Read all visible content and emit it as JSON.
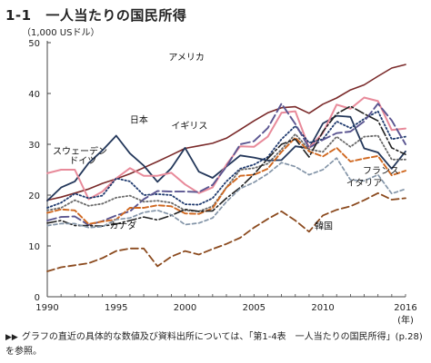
{
  "header": {
    "number": "1-1",
    "title": "一人当たりの国民所得",
    "unit": "（1,000 USドル）"
  },
  "note": {
    "bullet": "▶▶",
    "text": "グラフの直近の具体的な数値及び資料出所については、「第1-4表　一人当たりの国民所得」(p.28)を参照。"
  },
  "chart_data": {
    "type": "line",
    "title": "一人当たりの国民所得",
    "ylabel": "（1,000 USドル）",
    "xlabel_unit": "(年)",
    "xlim": [
      1990,
      2016
    ],
    "ylim": [
      0,
      50
    ],
    "xticks": [
      1990,
      1995,
      2000,
      2005,
      2010,
      2016
    ],
    "yticks": [
      0,
      10,
      20,
      30,
      40,
      50
    ],
    "grid": false,
    "x": [
      1990,
      1991,
      1992,
      1993,
      1994,
      1995,
      1996,
      1997,
      1998,
      1999,
      2000,
      2001,
      2002,
      2003,
      2004,
      2005,
      2006,
      2007,
      2008,
      2009,
      2010,
      2011,
      2012,
      2013,
      2014,
      2015,
      2016
    ],
    "series": [
      {
        "name": "アメリカ",
        "color": "#7a2a2a",
        "dash": "",
        "width": 1.6,
        "label_x": 1998.8,
        "label_y": 46.5,
        "values": [
          19.0,
          19.6,
          20.4,
          21.2,
          22.3,
          23.2,
          24.2,
          25.4,
          26.6,
          27.9,
          29.2,
          29.7,
          30.2,
          31.2,
          32.9,
          34.6,
          36.2,
          37.2,
          37.4,
          36.1,
          37.9,
          39.1,
          40.7,
          41.7,
          43.4,
          45.0,
          45.7
        ]
      },
      {
        "name": "日本",
        "color": "#23375a",
        "dash": "",
        "width": 1.8,
        "label_x": 1996.0,
        "label_y": 34.2,
        "values": [
          18.9,
          21.5,
          22.7,
          26.3,
          28.8,
          31.7,
          28.2,
          25.8,
          22.6,
          25.3,
          29.3,
          24.6,
          23.4,
          25.6,
          27.8,
          27.4,
          26.8,
          26.9,
          29.6,
          29.2,
          34.1,
          35.6,
          35.4,
          29.2,
          28.4,
          25.2,
          28.6
        ]
      },
      {
        "name": "スウェーデン",
        "color": "#e88a9a",
        "dash": "",
        "width": 2.0,
        "label_x": 1990.4,
        "label_y": 28.0,
        "values": [
          24.3,
          25.0,
          25.0,
          19.2,
          20.7,
          23.3,
          25.3,
          23.8,
          23.8,
          24.4,
          22.1,
          20.4,
          21.5,
          26.0,
          29.6,
          29.5,
          31.5,
          36.2,
          36.5,
          29.3,
          32.2,
          37.8,
          37.0,
          39.2,
          38.5,
          32.8,
          33.1
        ]
      },
      {
        "name": "ドイツ",
        "color": "#1f3a6e",
        "dash": "1.5,2.5",
        "width": 1.8,
        "label_x": 1991.6,
        "label_y": 26.2,
        "values": [
          17.5,
          18.5,
          20.3,
          19.4,
          19.9,
          23.3,
          22.7,
          20.0,
          20.2,
          20.0,
          18.2,
          18.1,
          19.4,
          22.7,
          25.2,
          26.0,
          27.5,
          31.0,
          33.6,
          30.3,
          31.0,
          34.5,
          33.2,
          35.0,
          36.5,
          31.0,
          31.5
        ]
      },
      {
        "name": "イギリス",
        "color": "#5a5590",
        "dash": "10,4",
        "width": 1.9,
        "label_x": 1999.0,
        "label_y": 33.0,
        "values": [
          15.0,
          15.7,
          15.8,
          14.1,
          14.9,
          16.0,
          16.8,
          19.2,
          20.8,
          20.7,
          20.7,
          20.6,
          22.0,
          25.6,
          30.0,
          30.6,
          33.2,
          38.0,
          34.0,
          29.3,
          30.9,
          32.2,
          32.5,
          34.5,
          38.0,
          34.7,
          30.0
        ]
      },
      {
        "name": "フランス",
        "color": "#6a6a6a",
        "dash": "1.5,2.5",
        "width": 1.8,
        "label_x": 2012.9,
        "label_y": 24.2,
        "values": [
          17.0,
          17.5,
          19.0,
          17.9,
          18.3,
          19.5,
          19.9,
          18.7,
          18.9,
          18.5,
          17.0,
          16.8,
          17.8,
          21.5,
          25.0,
          25.3,
          26.2,
          29.0,
          32.0,
          29.0,
          28.5,
          31.5,
          29.5,
          31.5,
          31.7,
          27.0,
          27.0
        ]
      },
      {
        "name": "イタリア",
        "color": "#d06820",
        "dash": "6,3",
        "width": 1.9,
        "label_x": 2011.7,
        "label_y": 21.8,
        "values": [
          16.5,
          17.2,
          17.0,
          14.3,
          14.8,
          15.2,
          17.5,
          17.5,
          18.0,
          17.8,
          16.4,
          16.3,
          17.4,
          21.5,
          23.8,
          24.0,
          25.2,
          28.5,
          31.3,
          28.6,
          27.6,
          29.3,
          26.6,
          27.2,
          27.7,
          23.9,
          24.8
        ]
      },
      {
        "name": "カナダ",
        "color": "#222222",
        "dash": "10,3,2,3",
        "width": 1.6,
        "label_x": 1994.5,
        "label_y": 13.4,
        "values": [
          14.5,
          15.0,
          14.0,
          14.0,
          13.9,
          14.3,
          15.0,
          15.7,
          15.1,
          16.0,
          17.2,
          16.8,
          16.9,
          19.4,
          21.5,
          24.1,
          27.2,
          30.0,
          31.0,
          27.5,
          32.5,
          36.0,
          37.5,
          36.0,
          34.6,
          29.3,
          28.0
        ]
      },
      {
        "name": "",
        "color": "#8495a8",
        "dash": "4,3",
        "width": 1.7,
        "label_x": 0,
        "label_y": 0,
        "values": [
          14.0,
          14.4,
          14.4,
          13.6,
          13.8,
          15.2,
          15.5,
          16.6,
          17.0,
          16.1,
          14.2,
          14.5,
          15.5,
          18.7,
          21.3,
          22.5,
          24.2,
          26.4,
          25.6,
          24.0,
          25.0,
          27.3,
          23.0,
          22.8,
          24.0,
          20.3,
          21.2
        ]
      },
      {
        "name": "韓国",
        "color": "#8b4a1e",
        "dash": "8,4",
        "width": 1.8,
        "label_x": 2009.4,
        "label_y": 13.3,
        "values": [
          5.0,
          5.8,
          6.2,
          6.6,
          7.6,
          9.0,
          9.5,
          9.5,
          6.0,
          7.9,
          9.0,
          8.3,
          9.4,
          10.4,
          11.6,
          13.6,
          15.3,
          16.8,
          15.0,
          12.8,
          16.0,
          17.1,
          17.8,
          19.0,
          20.4,
          19.1,
          19.4
        ]
      }
    ]
  }
}
